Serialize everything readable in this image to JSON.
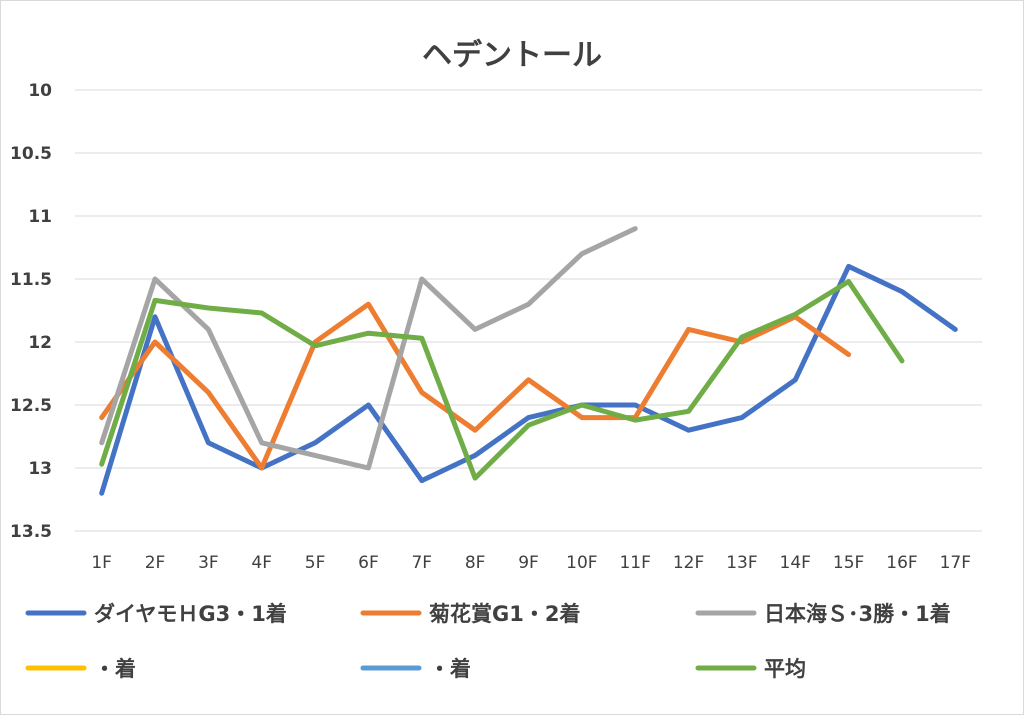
{
  "chart_data": {
    "type": "line",
    "title": "ヘデントール",
    "xlabel": "",
    "ylabel": "",
    "categories": [
      "1F",
      "2F",
      "3F",
      "4F",
      "5F",
      "6F",
      "7F",
      "8F",
      "9F",
      "10F",
      "11F",
      "12F",
      "13F",
      "14F",
      "15F",
      "16F",
      "17F"
    ],
    "y_ticks": [
      "10",
      "10.5",
      "11",
      "11.5",
      "12",
      "12.5",
      "13",
      "13.5"
    ],
    "ylim": [
      10,
      13.5
    ],
    "y_axis_inverted": true,
    "grid": true,
    "legend_position": "bottom",
    "series": [
      {
        "name": "ダイヤモＨG3・1着",
        "color": "#4472c4",
        "values": [
          13.2,
          11.8,
          12.8,
          13.0,
          12.8,
          12.5,
          13.1,
          12.9,
          12.6,
          12.5,
          12.5,
          12.7,
          12.6,
          12.3,
          11.4,
          11.6,
          11.9
        ]
      },
      {
        "name": "菊花賞G1・2着",
        "color": "#ed7d31",
        "values": [
          12.6,
          12.0,
          12.4,
          13.0,
          12.0,
          11.7,
          12.4,
          12.7,
          12.3,
          12.6,
          12.6,
          11.9,
          12.0,
          11.8,
          12.1,
          null,
          null
        ]
      },
      {
        "name": "日本海Ｓ･3勝・1着",
        "color": "#a5a5a5",
        "values": [
          12.8,
          11.5,
          11.9,
          12.8,
          12.9,
          13.0,
          11.5,
          11.9,
          11.7,
          11.3,
          11.1,
          null,
          null,
          null,
          null,
          null,
          null
        ]
      },
      {
        "name": "・着",
        "color": "#ffc000",
        "values": [
          null,
          null,
          null,
          null,
          null,
          null,
          null,
          null,
          null,
          null,
          null,
          null,
          null,
          null,
          null,
          null,
          null
        ]
      },
      {
        "name": "・着",
        "color": "#5b9bd5",
        "values": [
          null,
          null,
          null,
          null,
          null,
          null,
          null,
          null,
          null,
          null,
          null,
          null,
          null,
          null,
          null,
          null,
          null
        ]
      },
      {
        "name": "平均",
        "color": "#70ad47",
        "values": [
          12.97,
          11.67,
          11.73,
          11.77,
          12.03,
          11.93,
          11.97,
          13.08,
          12.66,
          12.5,
          12.62,
          12.55,
          11.96,
          11.78,
          11.52,
          12.15,
          null
        ]
      }
    ]
  }
}
